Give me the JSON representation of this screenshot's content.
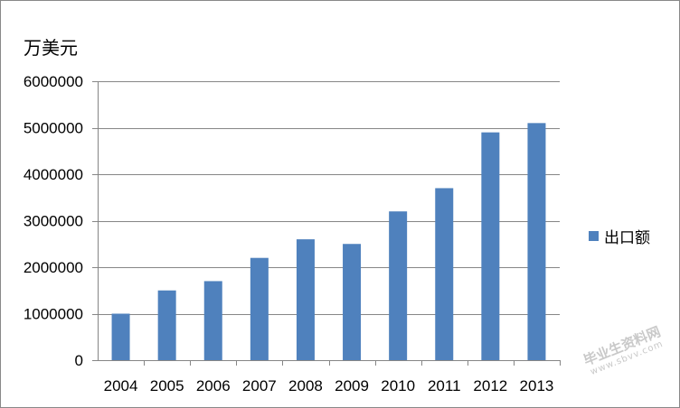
{
  "chart_data": {
    "type": "bar",
    "title": "",
    "ylabel": "万美元",
    "xlabel": "",
    "categories": [
      "2004",
      "2005",
      "2006",
      "2007",
      "2008",
      "2009",
      "2010",
      "2011",
      "2012",
      "2013"
    ],
    "series": [
      {
        "name": "出口额",
        "values": [
          1000000,
          1500000,
          1700000,
          2200000,
          2600000,
          2500000,
          3200000,
          3700000,
          4900000,
          5100000
        ]
      }
    ],
    "ylim": [
      0,
      6000000
    ],
    "yticks": [
      "0",
      "1000000",
      "2000000",
      "3000000",
      "4000000",
      "5000000",
      "6000000"
    ],
    "grid": "horizontal",
    "legend_position": "right",
    "colors": {
      "bar": "#4f81bd",
      "grid": "#868686",
      "axis": "#868686"
    }
  },
  "watermark": {
    "text_cn": "毕业生资料网",
    "text_en": "www.sbvv.com"
  }
}
